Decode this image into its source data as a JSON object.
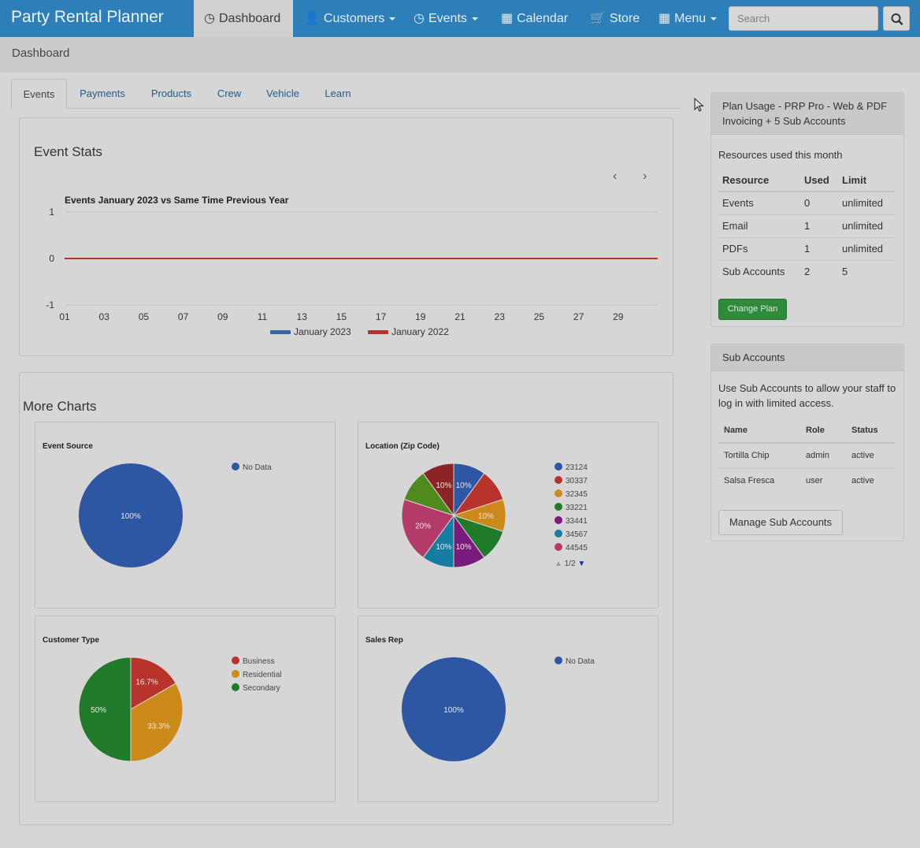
{
  "app": {
    "brand": "Party Rental Planner"
  },
  "nav": {
    "dashboard": "Dashboard",
    "customers": "Customers",
    "events": "Events",
    "calendar": "Calendar",
    "store": "Store",
    "menu": "Menu",
    "search_placeholder": "Search"
  },
  "breadcrumb": "Dashboard",
  "tabs": [
    "Events",
    "Payments",
    "Products",
    "Crew",
    "Vehicle",
    "Learn"
  ],
  "event_stats": {
    "heading": "Event Stats"
  },
  "more_charts": {
    "heading": "More Charts"
  },
  "plan_usage": {
    "title": "Plan Usage - PRP Pro - Web & PDF Invoicing + 5 Sub Accounts",
    "subtitle": "Resources used this month",
    "headers": [
      "Resource",
      "Used",
      "Limit"
    ],
    "rows": [
      [
        "Events",
        "0",
        "unlimited"
      ],
      [
        "Email",
        "1",
        "unlimited"
      ],
      [
        "PDFs",
        "1",
        "unlimited"
      ],
      [
        "Sub Accounts",
        "2",
        "5"
      ]
    ],
    "button": "Change Plan"
  },
  "sub_accounts": {
    "title": "Sub Accounts",
    "description": "Use Sub Accounts to allow your staff to log in with limited access.",
    "headers": [
      "Name",
      "Role",
      "Status"
    ],
    "rows": [
      [
        "Tortilla Chip",
        "admin",
        "active"
      ],
      [
        "Salsa Fresca",
        "user",
        "active"
      ]
    ],
    "button": "Manage Sub Accounts"
  },
  "chart_data": [
    {
      "type": "line",
      "title": "Events January 2023 vs Same Time Previous Year",
      "x": [
        "01",
        "02",
        "03",
        "04",
        "05",
        "06",
        "07",
        "08",
        "09",
        "10",
        "11",
        "12",
        "13",
        "14",
        "15",
        "16",
        "17",
        "18",
        "19",
        "20",
        "21",
        "22",
        "23",
        "24",
        "25",
        "26",
        "27",
        "28",
        "29",
        "30",
        "31"
      ],
      "x_tick_labels": [
        "01",
        "03",
        "05",
        "07",
        "09",
        "11",
        "13",
        "15",
        "17",
        "19",
        "21",
        "23",
        "25",
        "27",
        "29"
      ],
      "ylim": [
        -1,
        1
      ],
      "y_ticks": [
        "1",
        "0",
        "-1"
      ],
      "series": [
        {
          "name": "January 2023",
          "values": [
            0,
            0,
            0,
            0,
            0,
            0,
            0,
            0,
            0,
            0,
            0,
            0,
            0,
            0,
            0,
            0,
            0,
            0,
            0,
            0,
            0,
            0,
            0,
            0,
            0,
            0,
            0,
            0,
            0,
            0,
            0
          ],
          "color": "#3465a8"
        },
        {
          "name": "January 2022",
          "values": [
            0,
            0,
            0,
            0,
            0,
            0,
            0,
            0,
            0,
            0,
            0,
            0,
            0,
            0,
            0,
            0,
            0,
            0,
            0,
            0,
            0,
            0,
            0,
            0,
            0,
            0,
            0,
            0,
            0,
            0,
            0
          ],
          "color": "#b8332b"
        }
      ],
      "legend": "bottom",
      "grid": true
    },
    {
      "type": "pie",
      "title": "Event Source",
      "categories": [
        "No Data"
      ],
      "values": [
        100
      ],
      "labels": [
        "100%"
      ],
      "colors": [
        "#2f56a3"
      ],
      "legend": "right"
    },
    {
      "type": "pie",
      "title": "Location (Zip Code)",
      "categories": [
        "23124",
        "30337",
        "32345",
        "33221",
        "33441",
        "34567",
        "44545"
      ],
      "values": [
        10,
        10,
        10,
        10,
        10,
        10,
        20,
        10,
        10
      ],
      "slice_colors": [
        "#2f56a3",
        "#b8332b",
        "#cc8a1a",
        "#1f7a2a",
        "#7a1a7a",
        "#167da0",
        "#b43a6a",
        "#4e8a1e",
        "#8a2426"
      ],
      "labels": [
        "10%",
        "",
        "10%",
        "",
        "10%",
        "10%",
        "20%",
        "",
        "10%"
      ],
      "legend_colors": [
        "#2f56a3",
        "#b8332b",
        "#cc8a1a",
        "#1f7a2a",
        "#7a1a7a",
        "#167da0",
        "#b43a6a"
      ],
      "legend_page": "1/2",
      "legend": "right"
    },
    {
      "type": "pie",
      "title": "Customer Type",
      "categories": [
        "Business",
        "Residential",
        "Secondary"
      ],
      "values": [
        16.7,
        33.3,
        50
      ],
      "labels": [
        "16.7%",
        "33.3%",
        "50%"
      ],
      "colors": [
        "#b8332b",
        "#cc8a1a",
        "#1f7a2a"
      ],
      "legend": "right"
    },
    {
      "type": "pie",
      "title": "Sales Rep",
      "categories": [
        "No Data"
      ],
      "values": [
        100
      ],
      "labels": [
        "100%"
      ],
      "colors": [
        "#2f56a3"
      ],
      "legend": "right"
    }
  ]
}
